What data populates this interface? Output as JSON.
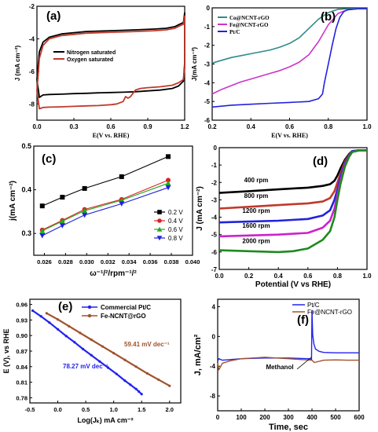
{
  "chart_data": [
    {
      "id": "a",
      "type": "line",
      "panel_label": "(a)",
      "xlabel": "E(V vs. RHE)",
      "ylabel": "J (mA cm⁻²)",
      "xlim": [
        0,
        1.2
      ],
      "ylim": [
        -9,
        -2
      ],
      "xticks": [
        0.0,
        0.3,
        0.6,
        0.9,
        1.2
      ],
      "yticks": [
        -2,
        -4,
        -6,
        -8
      ],
      "legend": "center-left",
      "series": [
        {
          "name": "Nitrogen saturated",
          "color": "#000000",
          "x": [
            0.0,
            0.02,
            0.05,
            0.1,
            0.2,
            0.4,
            0.6,
            0.8,
            0.95,
            1.05,
            1.12,
            1.16,
            1.19,
            1.2,
            1.2,
            1.19,
            1.15,
            1.1,
            1.0,
            0.9,
            0.8,
            0.7,
            0.6,
            0.5,
            0.4,
            0.3,
            0.2,
            0.1,
            0.05,
            0.02,
            0.0,
            0.0
          ],
          "y": [
            -6.5,
            -4.8,
            -4.2,
            -3.9,
            -3.7,
            -3.55,
            -3.5,
            -3.45,
            -3.4,
            -3.35,
            -3.25,
            -3.1,
            -3.0,
            -2.4,
            -5.5,
            -6.6,
            -6.9,
            -7.05,
            -7.15,
            -7.2,
            -7.25,
            -7.28,
            -7.3,
            -7.32,
            -7.35,
            -7.37,
            -7.4,
            -7.42,
            -7.45,
            -7.6,
            -6.5,
            -6.5
          ]
        },
        {
          "name": "Oxygen saturated",
          "color": "#c0392b",
          "x": [
            0.0,
            0.02,
            0.05,
            0.1,
            0.2,
            0.4,
            0.6,
            0.8,
            0.95,
            1.05,
            1.12,
            1.16,
            1.19,
            1.2,
            1.2,
            1.19,
            1.15,
            1.1,
            1.0,
            0.9,
            0.84,
            0.8,
            0.78,
            0.76,
            0.74,
            0.72,
            0.7,
            0.65,
            0.6,
            0.5,
            0.4,
            0.3,
            0.2,
            0.1,
            0.05,
            0.02,
            0.0,
            0.0
          ],
          "y": [
            -7.2,
            -5.2,
            -4.4,
            -4.0,
            -3.8,
            -3.65,
            -3.6,
            -3.55,
            -3.5,
            -3.45,
            -3.35,
            -3.2,
            -3.1,
            -2.6,
            -5.8,
            -6.5,
            -6.7,
            -6.85,
            -6.95,
            -7.0,
            -7.05,
            -7.15,
            -7.35,
            -7.55,
            -7.65,
            -7.55,
            -7.85,
            -8.0,
            -8.05,
            -8.1,
            -8.12,
            -8.15,
            -8.18,
            -8.2,
            -8.22,
            -8.3,
            -7.2,
            -7.2
          ]
        }
      ]
    },
    {
      "id": "b",
      "type": "line",
      "panel_label": "(b)",
      "xlabel": "E(V vs. RHE)",
      "ylabel": "J(mA cm⁻²)",
      "xlim": [
        0.2,
        1.0
      ],
      "ylim": [
        -6,
        0
      ],
      "xticks": [
        0.2,
        0.4,
        0.6,
        0.8,
        1.0
      ],
      "yticks": [
        0,
        -1,
        -2,
        -3,
        -4,
        -5,
        -6
      ],
      "legend": "top-left",
      "series": [
        {
          "name": "Co@NCNT-rGO",
          "color": "#2e8b8b",
          "x": [
            0.2,
            0.25,
            0.3,
            0.35,
            0.4,
            0.45,
            0.5,
            0.55,
            0.6,
            0.65,
            0.7,
            0.75,
            0.8,
            0.85,
            0.9,
            0.95,
            1.0
          ],
          "y": [
            -2.95,
            -2.8,
            -2.65,
            -2.55,
            -2.45,
            -2.35,
            -2.25,
            -2.1,
            -1.9,
            -1.6,
            -1.1,
            -0.6,
            -0.25,
            -0.08,
            -0.04,
            -0.03,
            -0.03
          ]
        },
        {
          "name": "Fe@NCNT-rGO",
          "color": "#cc33cc",
          "x": [
            0.2,
            0.25,
            0.3,
            0.35,
            0.4,
            0.45,
            0.5,
            0.55,
            0.6,
            0.65,
            0.7,
            0.75,
            0.8,
            0.85,
            0.9,
            0.95,
            1.0
          ],
          "y": [
            -4.6,
            -4.35,
            -4.15,
            -3.95,
            -3.8,
            -3.65,
            -3.5,
            -3.35,
            -3.15,
            -2.9,
            -2.5,
            -1.8,
            -0.9,
            -0.3,
            -0.1,
            -0.05,
            -0.05
          ]
        },
        {
          "name": "Pt/C",
          "color": "#2222dd",
          "x": [
            0.2,
            0.3,
            0.4,
            0.5,
            0.6,
            0.7,
            0.75,
            0.77,
            0.78,
            0.8,
            0.82,
            0.84,
            0.86,
            0.88,
            0.9,
            0.95,
            1.0
          ],
          "y": [
            -5.3,
            -5.2,
            -5.15,
            -5.1,
            -5.05,
            -5.0,
            -4.85,
            -4.6,
            -4.0,
            -3.0,
            -2.0,
            -1.1,
            -0.5,
            -0.2,
            -0.1,
            -0.05,
            -0.05
          ]
        }
      ]
    },
    {
      "id": "c",
      "type": "scatter",
      "panel_label": "(c)",
      "xlabel": "ω⁻¹/²/rpm⁻¹/²",
      "ylabel": "j(mA cm⁻²)",
      "xlim": [
        0.025,
        0.04
      ],
      "ylim": [
        0.25,
        0.5
      ],
      "xticks": [
        0.026,
        0.028,
        0.03,
        0.032,
        0.034,
        0.036,
        0.038,
        0.04
      ],
      "yticks": [
        0.3,
        0.4,
        0.5
      ],
      "legend": "right",
      "x": [
        0.0258,
        0.0277,
        0.0298,
        0.0333,
        0.0377
      ],
      "series": [
        {
          "name": "0.2 V",
          "color": "#000000",
          "marker": "square",
          "values": [
            0.363,
            0.383,
            0.403,
            0.43,
            0.476
          ]
        },
        {
          "name": "0.4 V",
          "color": "#dd2222",
          "marker": "circle",
          "values": [
            0.308,
            0.33,
            0.355,
            0.378,
            0.422
          ]
        },
        {
          "name": "0.6 V",
          "color": "#22aa22",
          "marker": "triangle-up",
          "values": [
            0.306,
            0.328,
            0.352,
            0.376,
            0.415
          ]
        },
        {
          "name": "0.8 V",
          "color": "#2222dd",
          "marker": "triangle-down",
          "values": [
            0.295,
            0.318,
            0.342,
            0.368,
            0.405
          ]
        }
      ]
    },
    {
      "id": "d",
      "type": "line",
      "panel_label": "(d)",
      "xlabel": "Potential (V vs RHE)",
      "ylabel": "J (mA cm⁻²)",
      "xlim": [
        0,
        1.0
      ],
      "ylim": [
        -7,
        0
      ],
      "xticks": [
        0.0,
        0.2,
        0.4,
        0.6,
        0.8,
        1.0
      ],
      "yticks": [
        0,
        -1,
        -2,
        -3,
        -4,
        -5,
        -6,
        -7
      ],
      "legend": "inline",
      "series": [
        {
          "name": "400 rpm",
          "color": "#000000",
          "x": [
            0.0,
            0.2,
            0.4,
            0.6,
            0.7,
            0.75,
            0.78,
            0.8,
            0.82,
            0.85,
            0.88,
            0.9,
            0.95,
            1.0
          ],
          "y": [
            -2.6,
            -2.5,
            -2.4,
            -2.3,
            -2.2,
            -2.1,
            -1.9,
            -1.6,
            -1.2,
            -0.7,
            -0.35,
            -0.2,
            -0.15,
            -0.15
          ]
        },
        {
          "name": "800 rpm",
          "color": "#c0392b",
          "x": [
            0.0,
            0.2,
            0.4,
            0.6,
            0.7,
            0.75,
            0.78,
            0.8,
            0.82,
            0.85,
            0.88,
            0.9,
            0.95,
            1.0
          ],
          "y": [
            -3.5,
            -3.4,
            -3.3,
            -3.2,
            -3.1,
            -2.9,
            -2.5,
            -2.0,
            -1.5,
            -0.8,
            -0.4,
            -0.2,
            -0.15,
            -0.15
          ]
        },
        {
          "name": "1200 rpm",
          "color": "#2222dd",
          "x": [
            0.0,
            0.2,
            0.4,
            0.6,
            0.7,
            0.75,
            0.78,
            0.8,
            0.82,
            0.85,
            0.88,
            0.9,
            0.95,
            1.0
          ],
          "y": [
            -4.3,
            -4.25,
            -4.2,
            -4.1,
            -3.9,
            -3.6,
            -3.0,
            -2.4,
            -1.7,
            -0.9,
            -0.45,
            -0.2,
            -0.15,
            -0.15
          ]
        },
        {
          "name": "1600 rpm",
          "color": "#cc22cc",
          "x": [
            0.0,
            0.2,
            0.4,
            0.6,
            0.7,
            0.75,
            0.78,
            0.8,
            0.82,
            0.85,
            0.88,
            0.9,
            0.95,
            1.0
          ],
          "y": [
            -5.1,
            -5.05,
            -5.0,
            -4.9,
            -4.6,
            -4.2,
            -3.5,
            -2.7,
            -1.9,
            -1.0,
            -0.5,
            -0.25,
            -0.15,
            -0.15
          ]
        },
        {
          "name": "2000 rpm",
          "color": "#1e8a1e",
          "x": [
            0.0,
            0.2,
            0.4,
            0.5,
            0.6,
            0.7,
            0.75,
            0.78,
            0.8,
            0.82,
            0.85,
            0.88,
            0.9,
            0.95,
            1.0
          ],
          "y": [
            -5.9,
            -5.95,
            -6.0,
            -5.95,
            -5.8,
            -5.3,
            -4.8,
            -4.0,
            -3.0,
            -2.1,
            -1.1,
            -0.5,
            -0.25,
            -0.15,
            -0.15
          ]
        }
      ]
    },
    {
      "id": "e",
      "type": "line",
      "panel_label": "(e)",
      "xlabel": "Log(Jₖ) mA cm⁻²",
      "ylabel": "E (V), vs RHE",
      "xlim": [
        -0.5,
        2.2
      ],
      "ylim": [
        0.77,
        0.97
      ],
      "xticks": [
        -0.5,
        0.0,
        0.5,
        1.0,
        1.5,
        2.0
      ],
      "yticks": [
        0.78,
        0.81,
        0.84,
        0.87,
        0.9,
        0.93,
        0.96
      ],
      "legend": "top-right",
      "annotations": [
        "78.27 mV dec⁻¹",
        "59.41 mV dec⁻¹"
      ],
      "series": [
        {
          "name": "Commercial Pt/C",
          "color": "#2222ee",
          "marker": "circle",
          "x": [
            -0.45,
            -0.3,
            -0.15,
            0.0,
            0.15,
            0.3,
            0.45,
            0.6,
            0.75,
            0.9,
            1.05,
            1.2,
            1.3,
            1.4,
            1.45,
            1.5
          ],
          "y": [
            0.948,
            0.937,
            0.925,
            0.912,
            0.899,
            0.887,
            0.874,
            0.862,
            0.85,
            0.838,
            0.826,
            0.813,
            0.805,
            0.797,
            0.792,
            0.787
          ]
        },
        {
          "name": "Fe-NCNT@rGO",
          "color": "#a0522d",
          "marker": "circle",
          "x": [
            -0.2,
            0.0,
            0.2,
            0.4,
            0.6,
            0.8,
            1.0,
            1.2,
            1.4,
            1.6,
            1.8,
            2.0
          ],
          "y": [
            0.943,
            0.931,
            0.918,
            0.905,
            0.892,
            0.879,
            0.866,
            0.853,
            0.84,
            0.827,
            0.815,
            0.803
          ]
        }
      ]
    },
    {
      "id": "f",
      "type": "line",
      "panel_label": "(f)",
      "xlabel": "Time, sec",
      "ylabel": "J, mA/cm²",
      "xlim": [
        0,
        600
      ],
      "ylim": [
        -10,
        5
      ],
      "xticks": [
        0,
        100,
        200,
        300,
        400,
        500,
        600
      ],
      "yticks": [
        -8,
        -4,
        0,
        4
      ],
      "legend": "top-right",
      "annotations": [
        "Methanol"
      ],
      "series": [
        {
          "name": "Pt/C",
          "color": "#2222ee",
          "x": [
            0,
            5,
            20,
            100,
            200,
            300,
            390,
            398,
            400,
            403,
            408,
            415,
            430,
            450,
            500,
            550,
            600
          ],
          "y": [
            -3.3,
            -3.0,
            -3.2,
            -3.0,
            -2.9,
            -2.9,
            -3.0,
            -3.1,
            3.5,
            0.2,
            -1.0,
            -1.7,
            -2.0,
            -2.15,
            -2.2,
            -2.2,
            -2.2
          ]
        },
        {
          "name": "Fe@NCNT-rGO",
          "color": "#a0522d",
          "x": [
            0,
            5,
            20,
            50,
            100,
            150,
            200,
            250,
            300,
            350,
            400,
            410,
            450,
            500,
            550,
            600
          ],
          "y": [
            -3.6,
            -4.5,
            -3.6,
            -3.3,
            -3.0,
            -2.9,
            -2.8,
            -2.9,
            -3.0,
            -3.1,
            -3.2,
            -3.5,
            -3.2,
            -3.15,
            -3.2,
            -3.2
          ]
        }
      ]
    }
  ]
}
